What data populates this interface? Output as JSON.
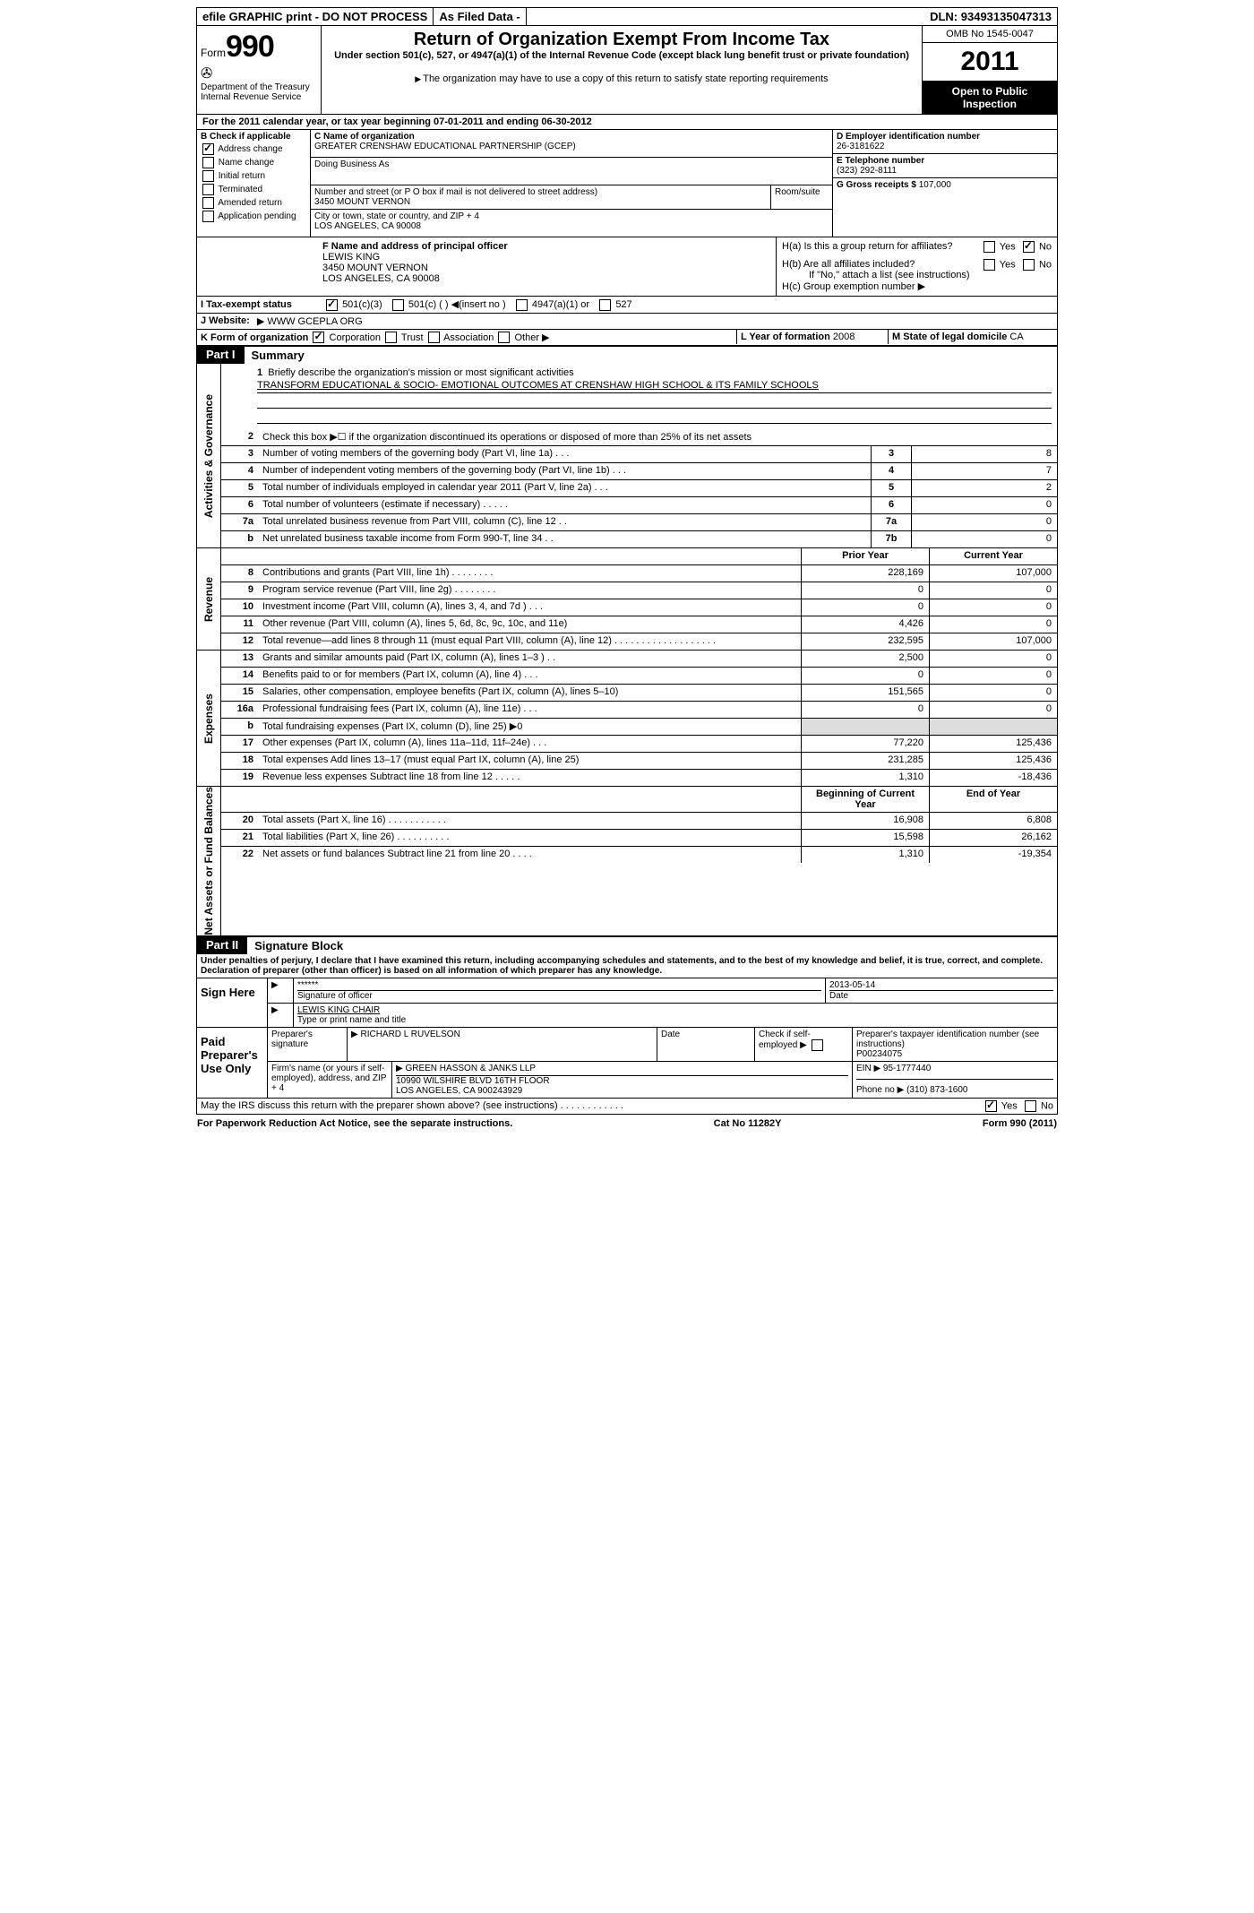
{
  "topbar": {
    "efile": "efile GRAPHIC print - DO NOT PROCESS",
    "asfiled": "As Filed Data -",
    "dln_label": "DLN:",
    "dln": "93493135047313"
  },
  "header": {
    "form_label": "Form",
    "form_num": "990",
    "dept": "Department of the Treasury",
    "irs": "Internal Revenue Service",
    "title": "Return of Organization Exempt From Income Tax",
    "subtitle": "Under section 501(c), 527, or 4947(a)(1) of the Internal Revenue Code (except black lung benefit trust or private foundation)",
    "copy_note": "The organization may have to use a copy of this return to satisfy state reporting requirements",
    "omb": "OMB No 1545-0047",
    "year": "2011",
    "open": "Open to Public Inspection"
  },
  "A": {
    "text": "For the 2011 calendar year, or tax year beginning 07-01-2011    and ending 06-30-2012"
  },
  "B": {
    "label": "B Check if applicable",
    "address_change": "Address change",
    "name_change": "Name change",
    "initial_return": "Initial return",
    "terminated": "Terminated",
    "amended_return": "Amended return",
    "application_pending": "Application pending"
  },
  "C": {
    "name_label": "C Name of organization",
    "name": "GREATER CRENSHAW EDUCATIONAL PARTNERSHIP (GCEP)",
    "dba_label": "Doing Business As",
    "street_label": "Number and street (or P O  box if mail is not delivered to street address)",
    "room_label": "Room/suite",
    "street": "3450 MOUNT VERNON",
    "city_label": "City or town, state or country, and ZIP + 4",
    "city": "LOS ANGELES, CA  90008"
  },
  "D": {
    "label": "D Employer identification number",
    "value": "26-3181622"
  },
  "E": {
    "label": "E Telephone number",
    "value": "(323) 292-8111"
  },
  "G": {
    "label": "G Gross receipts $",
    "value": "107,000"
  },
  "F": {
    "label": "F   Name and address of principal officer",
    "name": "LEWIS KING",
    "street": "3450 MOUNT VERNON",
    "city": "LOS ANGELES, CA  90008"
  },
  "H": {
    "a": "H(a)  Is this a group return for affiliates?",
    "b": "H(b)  Are all affiliates included?",
    "b_note": "If \"No,\" attach a list  (see instructions)",
    "c": "H(c)   Group exemption number",
    "yes": "Yes",
    "no": "No"
  },
  "I": {
    "label": "I   Tax-exempt status",
    "opt1": "501(c)(3)",
    "opt2": "501(c) (   )",
    "insert": "(insert no )",
    "opt3": "4947(a)(1) or",
    "opt4": "527"
  },
  "J": {
    "label": "J   Website:",
    "value": "WWW GCEPLA ORG"
  },
  "K": {
    "label": "K Form of organization",
    "corp": "Corporation",
    "trust": "Trust",
    "assoc": "Association",
    "other": "Other"
  },
  "L": {
    "label": "L Year of formation",
    "value": "2008"
  },
  "M": {
    "label": "M State of legal domicile",
    "value": "CA"
  },
  "part1": {
    "num": "Part I",
    "title": "Summary",
    "label_activities": "Activities & Governance",
    "label_revenue": "Revenue",
    "label_expenses": "Expenses",
    "label_netassets": "Net Assets or Fund Balances",
    "line1_label": "Briefly describe the organization's mission or most significant activities",
    "line1_text": "TRANSFORM EDUCATIONAL & SOCIO- EMOTIONAL OUTCOMES AT CRENSHAW HIGH SCHOOL & ITS FAMILY SCHOOLS",
    "line2": "Check this box ▶☐ if the organization discontinued its operations or disposed of more than 25% of its net assets",
    "rows_governance": [
      {
        "n": "3",
        "d": "Number of voting members of the governing body (Part VI, line 1a)   .    .    .",
        "k": "3",
        "v": "8"
      },
      {
        "n": "4",
        "d": "Number of independent voting members of the governing body (Part VI, line 1b)   .    .    .",
        "k": "4",
        "v": "7"
      },
      {
        "n": "5",
        "d": "Total number of individuals employed in calendar year 2011 (Part V, line 2a)   .    .    .",
        "k": "5",
        "v": "2"
      },
      {
        "n": "6",
        "d": "Total number of volunteers (estimate if necessary)   .    .    .    .    .",
        "k": "6",
        "v": "0"
      },
      {
        "n": "7a",
        "d": "Total unrelated business revenue from Part VIII, column (C), line 12   .    .",
        "k": "7a",
        "v": "0"
      },
      {
        "n": "b",
        "d": "Net unrelated business taxable income from Form 990-T, line 34   .    .",
        "k": "7b",
        "v": "0"
      }
    ],
    "prior_label": "Prior Year",
    "current_label": "Current Year",
    "rows_revenue": [
      {
        "n": "8",
        "d": "Contributions and grants (Part VIII, line 1h)   .    .    .    .    .    .    .    .",
        "p": "228,169",
        "c": "107,000"
      },
      {
        "n": "9",
        "d": "Program service revenue (Part VIII, line 2g)   .    .    .    .    .    .    .    .",
        "p": "0",
        "c": "0"
      },
      {
        "n": "10",
        "d": "Investment income (Part VIII, column (A), lines 3, 4, and 7d )   .    .    .",
        "p": "0",
        "c": "0"
      },
      {
        "n": "11",
        "d": "Other revenue (Part VIII, column (A), lines 5, 6d, 8c, 9c, 10c, and 11e)",
        "p": "4,426",
        "c": "0"
      },
      {
        "n": "12",
        "d": "Total revenue—add lines 8 through 11 (must equal Part VIII, column (A), line 12) .    .    .    .    .    .    .    .    .    .    .    .    .    .    .    .    .    .    .",
        "p": "232,595",
        "c": "107,000"
      }
    ],
    "rows_expenses": [
      {
        "n": "13",
        "d": "Grants and similar amounts paid (Part IX, column (A), lines 1–3 )   .    .",
        "p": "2,500",
        "c": "0"
      },
      {
        "n": "14",
        "d": "Benefits paid to or for members (Part IX, column (A), line 4)   .    .    .",
        "p": "0",
        "c": "0"
      },
      {
        "n": "15",
        "d": "Salaries, other compensation, employee benefits (Part IX, column (A), lines 5–10)",
        "p": "151,565",
        "c": "0"
      },
      {
        "n": "16a",
        "d": "Professional fundraising fees (Part IX, column (A), line 11e)   .    .    .",
        "p": "0",
        "c": "0"
      },
      {
        "n": "b",
        "d": "Total fundraising expenses (Part IX, column (D), line 25) ▶0",
        "p": "",
        "c": ""
      },
      {
        "n": "17",
        "d": "Other expenses (Part IX, column (A), lines 11a–11d, 11f–24e)   .    .    .",
        "p": "77,220",
        "c": "125,436"
      },
      {
        "n": "18",
        "d": "Total expenses  Add lines 13–17 (must equal Part IX, column (A), line 25)",
        "p": "231,285",
        "c": "125,436"
      },
      {
        "n": "19",
        "d": "Revenue less expenses  Subtract line 18 from line 12   .    .    .    .    .",
        "p": "1,310",
        "c": "-18,436"
      }
    ],
    "begin_label": "Beginning of Current Year",
    "end_label": "End of Year",
    "rows_netassets": [
      {
        "n": "20",
        "d": "Total assets (Part X, line 16)   .    .    .    .    .    .    .    .    .    .    .",
        "p": "16,908",
        "c": "6,808"
      },
      {
        "n": "21",
        "d": "Total liabilities (Part X, line 26)   .    .    .    .    .    .    .    .    .    .",
        "p": "15,598",
        "c": "26,162"
      },
      {
        "n": "22",
        "d": "Net assets or fund balances  Subtract line 21 from line 20   .    .    .    .",
        "p": "1,310",
        "c": "-19,354"
      }
    ]
  },
  "part2": {
    "num": "Part II",
    "title": "Signature Block",
    "perjury": "Under penalties of perjury, I declare that I have examined this return, including accompanying schedules and statements, and to the best of my knowledge and belief, it is true, correct, and complete. Declaration of preparer (other than officer) is based on all information of which preparer has any knowledge.",
    "sign_here": "Sign Here",
    "stars": "******",
    "sig_officer": "Signature of officer",
    "sig_date": "2013-05-14",
    "date_label": "Date",
    "officer_name": "LEWIS KING CHAIR",
    "type_name": "Type or print name and title",
    "paid": "Paid Preparer's Use Only",
    "prep_sig_label": "Preparer's signature",
    "prep_name": "RICHARD L RUVELSON",
    "check_self": "Check if self-employed",
    "ptin_label": "Preparer's taxpayer identification number (see instructions)",
    "ptin": "P00234075",
    "firm_label": "Firm's name (or yours if self-employed), address, and ZIP + 4",
    "firm_name": "GREEN HASSON & JANKS LLP",
    "firm_street": "10990 WILSHIRE BLVD 16TH FLOOR",
    "firm_city": "LOS ANGELES, CA  900243929",
    "ein_label": "EIN",
    "ein": "95-1777440",
    "phone_label": "Phone no",
    "phone": "(310) 873-1600",
    "discuss": "May the IRS discuss this return with the preparer shown above? (see instructions)   .    .    .    .    .    .    .    .    .    .    .    ."
  },
  "footer": {
    "left": "For Paperwork Reduction Act Notice, see the separate instructions.",
    "center": "Cat No  11282Y",
    "right": "Form 990 (2011)"
  }
}
